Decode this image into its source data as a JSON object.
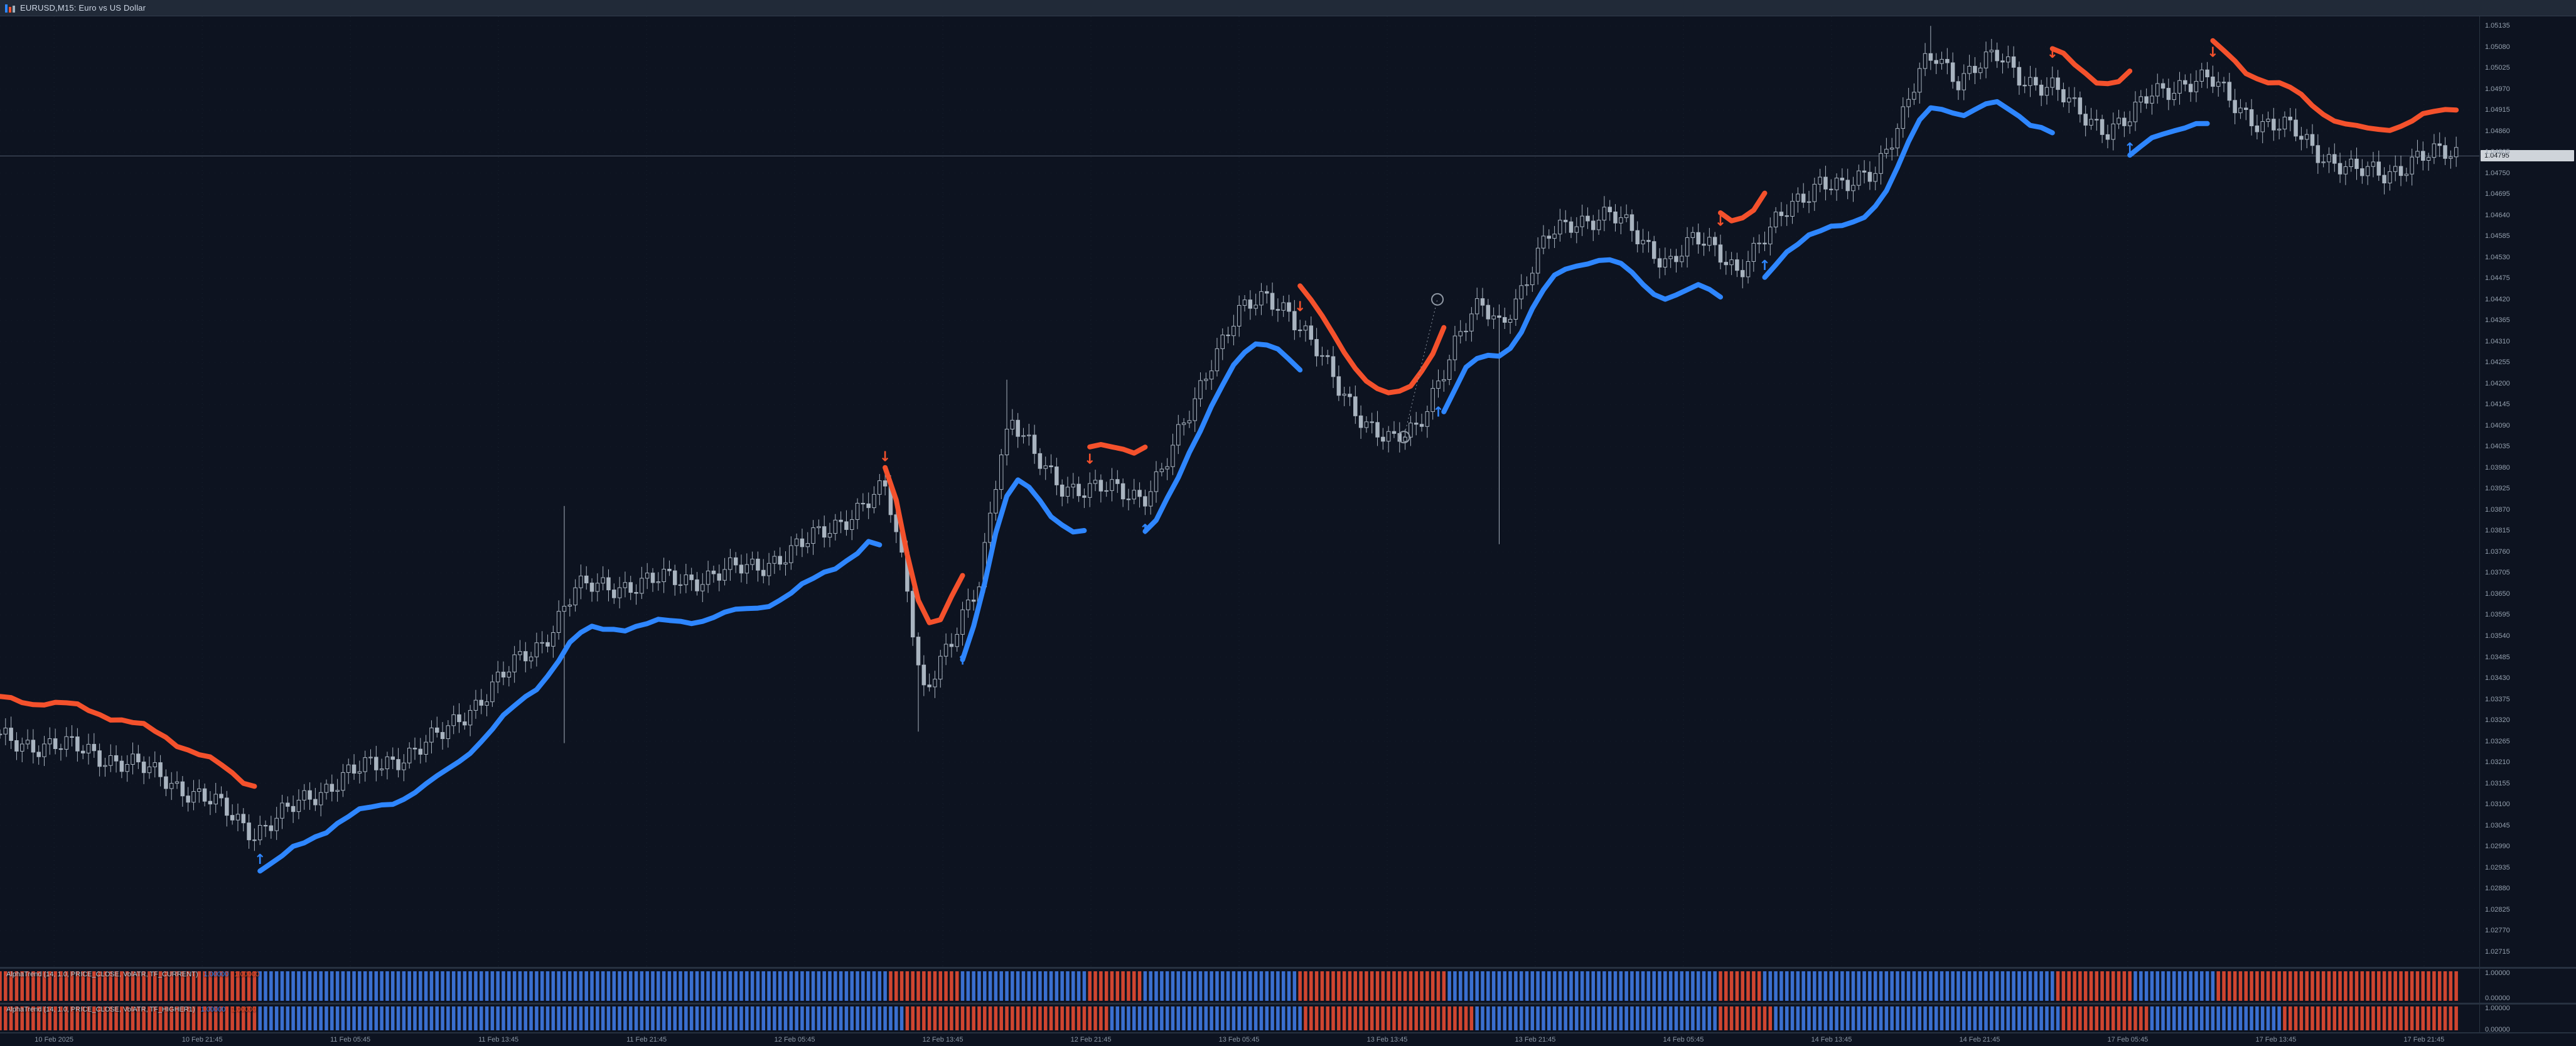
{
  "window": {
    "title": "EURUSD,M15: Euro vs US Dollar",
    "icon": "candlestick-chart-icon"
  },
  "colors": {
    "background": "#0d1320",
    "up_trend": "#2e86ff",
    "down_trend": "#f4512c",
    "candle": "#a9b4c0",
    "axis_text": "#94a0ae",
    "grid": "#1a2431",
    "bid_line": "#515c6c",
    "badge_bg": "#cfd4da",
    "badge_text": "#11161e",
    "pane_up_bar": "#3a6fd0",
    "pane_down_bar": "#d04530"
  },
  "price_axis": {
    "current_price": "1.04795",
    "labels": [
      "1.05135",
      "1.05080",
      "1.05025",
      "1.04970",
      "1.04915",
      "1.04860",
      "1.04805",
      "1.04750",
      "1.04695",
      "1.04640",
      "1.04585",
      "1.04530",
      "1.04475",
      "1.04420",
      "1.04365",
      "1.04310",
      "1.04255",
      "1.04200",
      "1.04145",
      "1.04090",
      "1.04035",
      "1.03980",
      "1.03925",
      "1.03870",
      "1.03815",
      "1.03760",
      "1.03705",
      "1.03650",
      "1.03595",
      "1.03540",
      "1.03485",
      "1.03430",
      "1.03375",
      "1.03320",
      "1.03265",
      "1.03210",
      "1.03155",
      "1.03100",
      "1.03045",
      "1.02990",
      "1.02935",
      "1.02880",
      "1.02825",
      "1.02770",
      "1.02715"
    ]
  },
  "time_axis": {
    "labels": [
      "10 Feb 2025",
      "10 Feb 21:45",
      "11 Feb 05:45",
      "11 Feb 13:45",
      "11 Feb 21:45",
      "12 Feb 05:45",
      "12 Feb 13:45",
      "12 Feb 21:45",
      "13 Feb 05:45",
      "13 Feb 13:45",
      "13 Feb 21:45",
      "14 Feb 05:45",
      "14 Feb 13:45",
      "14 Feb 21:45",
      "17 Feb 05:45",
      "17 Feb 13:45",
      "17 Feb 21:45"
    ]
  },
  "panes": [
    {
      "label": "AlphaTrend (14, 1.0, PRICE_CLOSE, VolATR, TF_CURRENT)",
      "values": [
        "1.00000",
        "1.00000"
      ],
      "scale_top": "1.00000",
      "scale_bottom": "0.00000",
      "segments": [
        [
          0,
          0.105,
          "down"
        ],
        [
          0.105,
          0.361,
          "up"
        ],
        [
          0.361,
          0.391,
          "down"
        ],
        [
          0.391,
          0.443,
          "up"
        ],
        [
          0.443,
          0.466,
          "down"
        ],
        [
          0.466,
          0.529,
          "up"
        ],
        [
          0.529,
          0.589,
          "down"
        ],
        [
          0.589,
          0.7,
          "up"
        ],
        [
          0.7,
          0.718,
          "down"
        ],
        [
          0.718,
          0.836,
          "up"
        ],
        [
          0.836,
          0.868,
          "down"
        ],
        [
          0.868,
          0.902,
          "up"
        ],
        [
          0.902,
          1.0,
          "down"
        ]
      ]
    },
    {
      "label": "AlphaTrend (14, 1.0, PRICE_CLOSE, VolATR, TF_HIGHER1)",
      "values": [
        "1.00000",
        "1.00000"
      ],
      "scale_top": "1.00000",
      "scale_bottom": "0.00000",
      "segments": [
        [
          0,
          0.105,
          "down"
        ],
        [
          0.105,
          0.368,
          "up"
        ],
        [
          0.368,
          0.452,
          "down"
        ],
        [
          0.452,
          0.53,
          "up"
        ],
        [
          0.53,
          0.6,
          "down"
        ],
        [
          0.6,
          0.7,
          "up"
        ],
        [
          0.7,
          0.722,
          "down"
        ],
        [
          0.722,
          0.84,
          "up"
        ],
        [
          0.84,
          0.876,
          "down"
        ],
        [
          0.876,
          0.928,
          "up"
        ],
        [
          0.928,
          1.0,
          "down"
        ]
      ]
    }
  ],
  "chart_data": {
    "type": "candlestick",
    "symbol": "EURUSD",
    "timeframe": "M15",
    "scale_top": 1.0516,
    "scale_bottom": 1.02675,
    "bid": 1.04795,
    "bars": 445,
    "last_bar_t": 0.9535,
    "close_waypoints": [
      [
        0.0,
        1.0327
      ],
      [
        0.035,
        1.0324
      ],
      [
        0.064,
        1.0317
      ],
      [
        0.083,
        1.031
      ],
      [
        0.099,
        1.0303
      ],
      [
        0.112,
        1.0308
      ],
      [
        0.134,
        1.0318
      ],
      [
        0.147,
        1.032
      ],
      [
        0.172,
        1.0328
      ],
      [
        0.191,
        1.0341
      ],
      [
        0.21,
        1.0352
      ],
      [
        0.223,
        1.0366
      ],
      [
        0.25,
        1.0368
      ],
      [
        0.268,
        1.0369
      ],
      [
        0.293,
        1.0372
      ],
      [
        0.313,
        1.0378
      ],
      [
        0.332,
        1.0387
      ],
      [
        0.344,
        1.0392
      ],
      [
        0.352,
        1.0368
      ],
      [
        0.358,
        1.034
      ],
      [
        0.364,
        1.0346
      ],
      [
        0.37,
        1.0352
      ],
      [
        0.38,
        1.0368
      ],
      [
        0.388,
        1.0402
      ],
      [
        0.393,
        1.041
      ],
      [
        0.402,
        1.04
      ],
      [
        0.412,
        1.0394
      ],
      [
        0.422,
        1.0392
      ],
      [
        0.433,
        1.0392
      ],
      [
        0.444,
        1.0391
      ],
      [
        0.452,
        1.0398
      ],
      [
        0.462,
        1.0412
      ],
      [
        0.471,
        1.0428
      ],
      [
        0.48,
        1.0438
      ],
      [
        0.492,
        1.0442
      ],
      [
        0.5,
        1.044
      ],
      [
        0.508,
        1.0432
      ],
      [
        0.52,
        1.0418
      ],
      [
        0.531,
        1.041
      ],
      [
        0.541,
        1.0404
      ],
      [
        0.55,
        1.0408
      ],
      [
        0.558,
        1.0421
      ],
      [
        0.566,
        1.0432
      ],
      [
        0.575,
        1.044
      ],
      [
        0.582,
        1.0436
      ],
      [
        0.59,
        1.0444
      ],
      [
        0.601,
        1.0458
      ],
      [
        0.612,
        1.0463
      ],
      [
        0.625,
        1.0464
      ],
      [
        0.638,
        1.0457
      ],
      [
        0.648,
        1.0452
      ],
      [
        0.658,
        1.0457
      ],
      [
        0.667,
        1.0455
      ],
      [
        0.675,
        1.045
      ],
      [
        0.686,
        1.0458
      ],
      [
        0.695,
        1.0467
      ],
      [
        0.706,
        1.0473
      ],
      [
        0.716,
        1.047
      ],
      [
        0.728,
        1.0477
      ],
      [
        0.739,
        1.049
      ],
      [
        0.746,
        1.0502
      ],
      [
        0.752,
        1.0506
      ],
      [
        0.76,
        1.05
      ],
      [
        0.768,
        1.0503
      ],
      [
        0.776,
        1.0505
      ],
      [
        0.786,
        1.05
      ],
      [
        0.797,
        1.0497
      ],
      [
        0.806,
        1.0491
      ],
      [
        0.818,
        1.0487
      ],
      [
        0.827,
        1.0489
      ],
      [
        0.836,
        1.0496
      ],
      [
        0.848,
        1.0499
      ],
      [
        0.858,
        1.0499
      ],
      [
        0.866,
        1.0494
      ],
      [
        0.878,
        1.0488
      ],
      [
        0.89,
        1.0486
      ],
      [
        0.902,
        1.048
      ],
      [
        0.914,
        1.0475
      ],
      [
        0.926,
        1.0475
      ],
      [
        0.938,
        1.0479
      ],
      [
        0.9535,
        1.048
      ]
    ],
    "wick_spikes": [
      [
        0.099,
        1.0299
      ],
      [
        0.218,
        1.0388
      ],
      [
        0.219,
        1.0326
      ],
      [
        0.357,
        1.0329
      ],
      [
        0.39,
        1.0421
      ],
      [
        0.582,
        1.0378
      ],
      [
        0.749,
        1.05135
      ]
    ],
    "trend_segments": [
      [
        0.0,
        0.1,
        "down"
      ],
      [
        0.1,
        0.344,
        "up"
      ],
      [
        0.344,
        0.373,
        "down"
      ],
      [
        0.373,
        0.422,
        "up"
      ],
      [
        0.422,
        0.444,
        "down"
      ],
      [
        0.444,
        0.504,
        "up"
      ],
      [
        0.504,
        0.561,
        "down"
      ],
      [
        0.561,
        0.667,
        "up"
      ],
      [
        0.667,
        0.684,
        "down"
      ],
      [
        0.684,
        0.797,
        "up"
      ],
      [
        0.797,
        0.827,
        "down"
      ],
      [
        0.827,
        0.86,
        "up"
      ],
      [
        0.86,
        0.9535,
        "down"
      ]
    ],
    "arrows": [
      {
        "t": 0.1,
        "dir": "up"
      },
      {
        "t": 0.344,
        "dir": "down"
      },
      {
        "t": 0.373,
        "dir": "up"
      },
      {
        "t": 0.422,
        "dir": "down"
      },
      {
        "t": 0.444,
        "dir": "up"
      },
      {
        "t": 0.504,
        "dir": "down"
      },
      {
        "t": 0.558,
        "dir": "up"
      },
      {
        "t": 0.667,
        "dir": "down"
      },
      {
        "t": 0.684,
        "dir": "up"
      },
      {
        "t": 0.797,
        "dir": "down"
      },
      {
        "t": 0.827,
        "dir": "up"
      },
      {
        "t": 0.86,
        "dir": "down"
      }
    ],
    "objects": [
      {
        "type": "circle",
        "t": 0.545,
        "price": 1.0406
      },
      {
        "type": "circle",
        "t": 0.558,
        "price": 1.0442
      }
    ]
  }
}
